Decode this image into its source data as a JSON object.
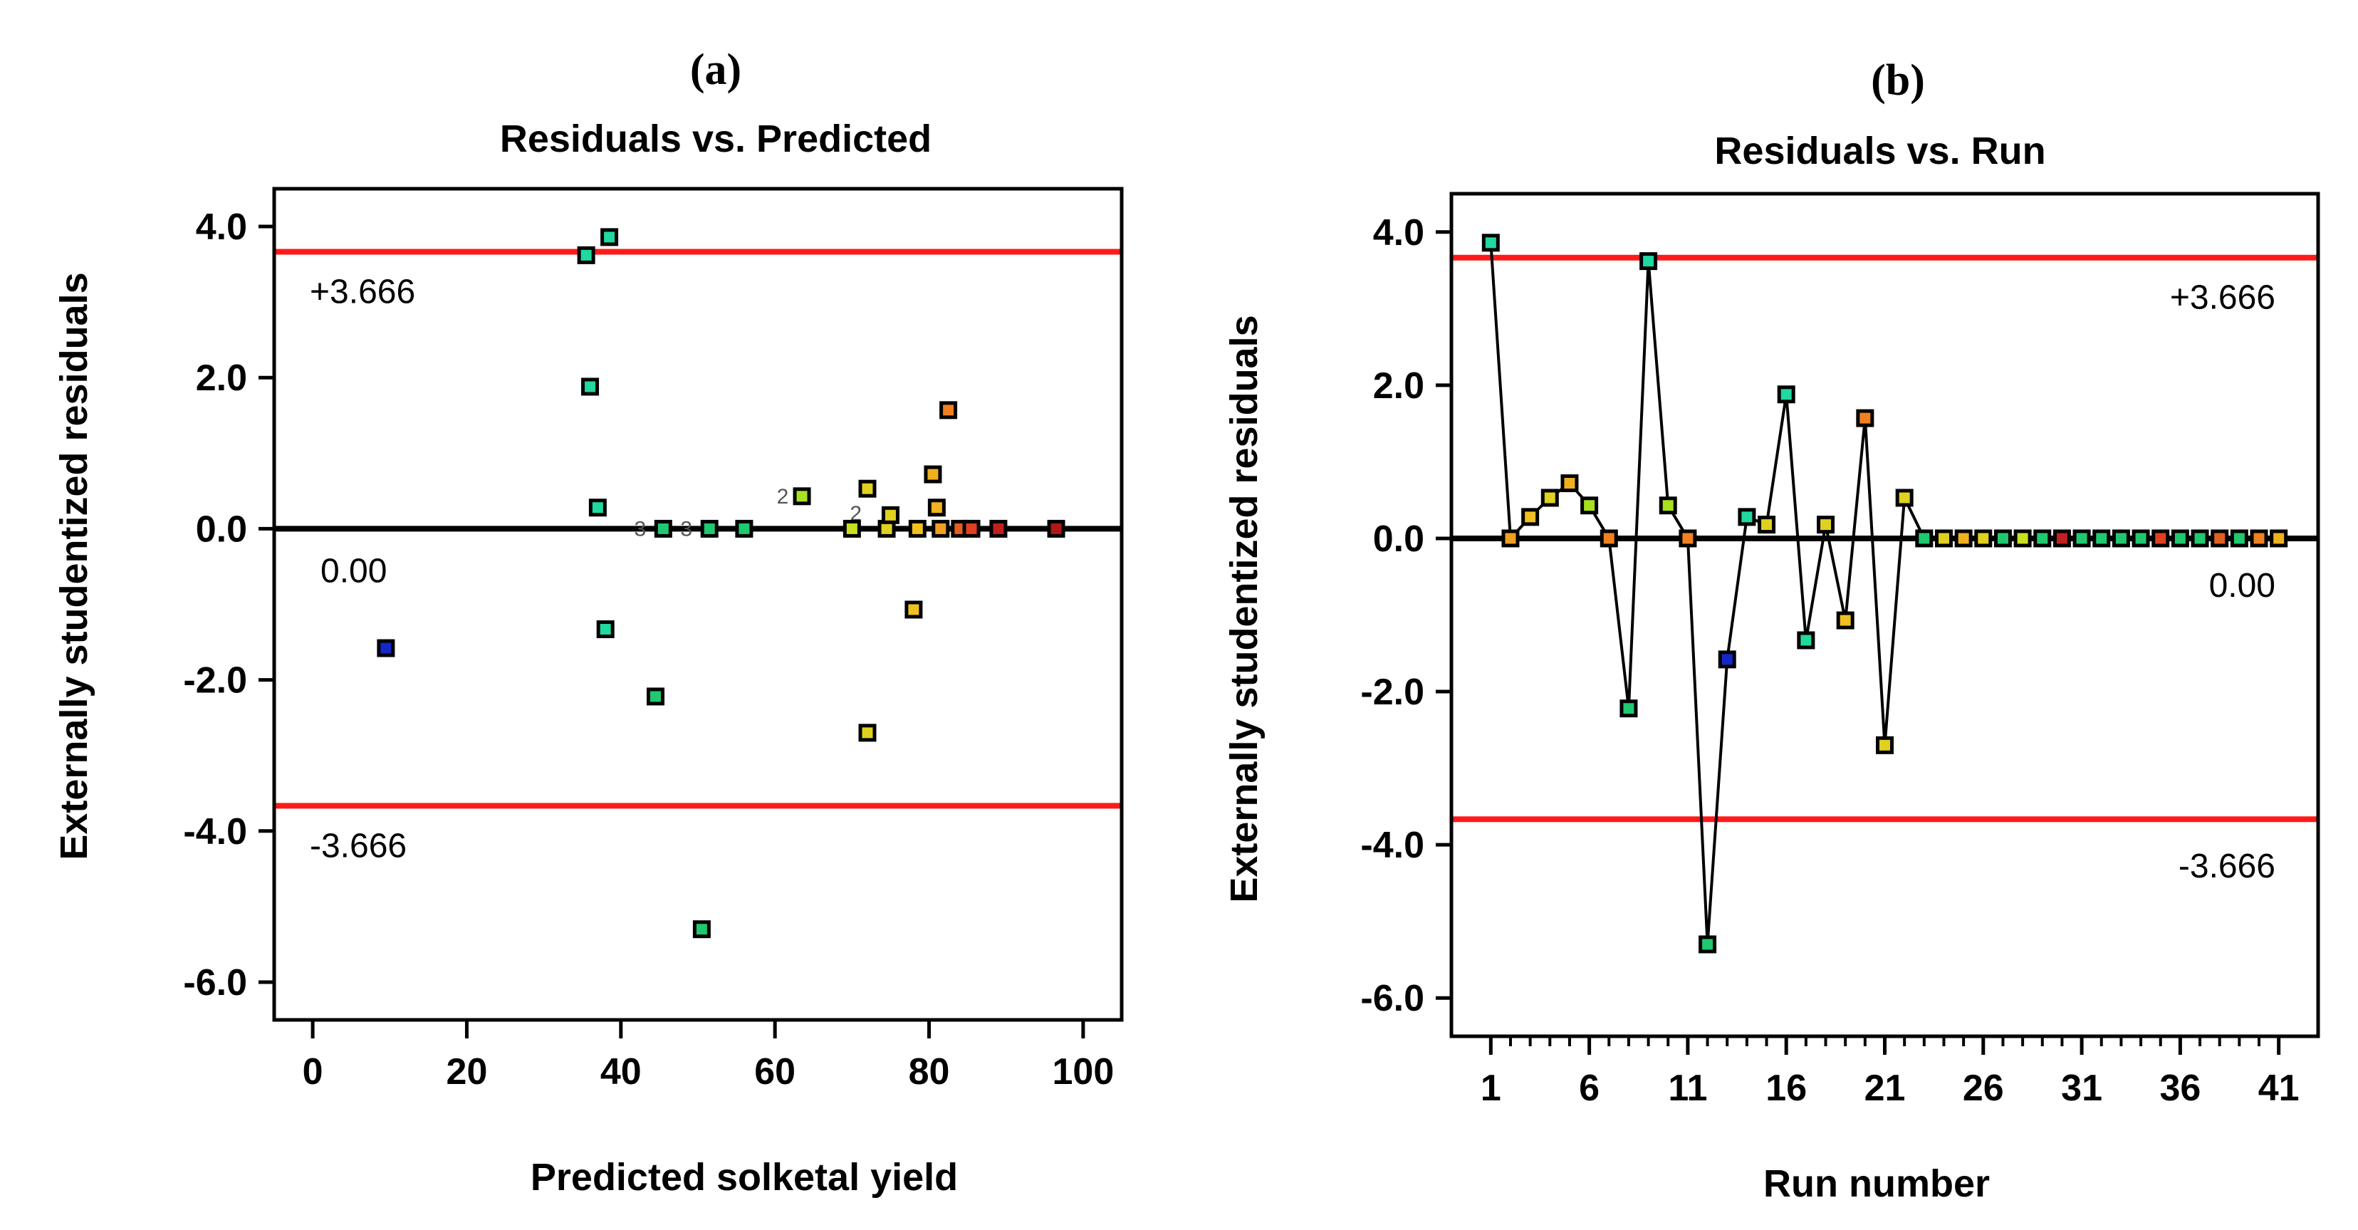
{
  "colors": {
    "limit": "#ff1a1a",
    "zero": "#000000",
    "frame": "#000000"
  },
  "chart_data": [
    {
      "panel_label": "(a)",
      "type": "scatter",
      "title": "Residuals vs. Predicted",
      "xlabel": "Predicted solketal yield",
      "ylabel": "Externally studentized residuals",
      "xlim": [
        -5,
        105
      ],
      "ylim": [
        -6.5,
        4.5
      ],
      "xticks": [
        0,
        20,
        40,
        60,
        80,
        100
      ],
      "yticks": [
        4.0,
        2.0,
        0.0,
        -2.0,
        -4.0,
        -6.0
      ],
      "ytick_labels": [
        "4.0",
        "2.0",
        "0.0",
        "-2.0",
        "-4.0",
        "-6.0"
      ],
      "limits": {
        "upper": 3.666,
        "lower": -3.666,
        "center": 0.0
      },
      "limit_labels": {
        "upper": "+3.666",
        "lower": "-3.666",
        "center": "0.00"
      },
      "points": [
        {
          "x": 9.5,
          "y": -1.58,
          "color": "#1428c8"
        },
        {
          "x": 35.5,
          "y": 3.62,
          "color": "#20d8a0"
        },
        {
          "x": 38.5,
          "y": 3.86,
          "color": "#20d8a0"
        },
        {
          "x": 36.0,
          "y": 1.88,
          "color": "#20d8a0"
        },
        {
          "x": 37.0,
          "y": 0.28,
          "color": "#20d8a0"
        },
        {
          "x": 38.0,
          "y": -1.33,
          "color": "#20d8a0"
        },
        {
          "x": 44.5,
          "y": -2.22,
          "color": "#20c870"
        },
        {
          "x": 45.5,
          "y": 0.0,
          "color": "#20c870"
        },
        {
          "x": 50.5,
          "y": -5.3,
          "color": "#20c870"
        },
        {
          "x": 51.5,
          "y": 0.0,
          "color": "#20c870"
        },
        {
          "x": 56.0,
          "y": 0.0,
          "color": "#20c870"
        },
        {
          "x": 63.5,
          "y": 0.43,
          "color": "#a8e020"
        },
        {
          "x": 70.0,
          "y": 0.0,
          "color": "#c8e020"
        },
        {
          "x": 72.0,
          "y": 0.53,
          "color": "#e0d020"
        },
        {
          "x": 72.0,
          "y": -2.7,
          "color": "#e0d020"
        },
        {
          "x": 74.5,
          "y": 0.0,
          "color": "#e0d020"
        },
        {
          "x": 75.0,
          "y": 0.18,
          "color": "#e0d020"
        },
        {
          "x": 78.0,
          "y": -1.07,
          "color": "#f0c020"
        },
        {
          "x": 78.5,
          "y": 0.0,
          "color": "#f0c020"
        },
        {
          "x": 80.5,
          "y": 0.72,
          "color": "#f0b020"
        },
        {
          "x": 81.0,
          "y": 0.28,
          "color": "#f0b020"
        },
        {
          "x": 81.5,
          "y": 0.0,
          "color": "#f0a020"
        },
        {
          "x": 82.5,
          "y": 1.57,
          "color": "#f08020"
        },
        {
          "x": 84.0,
          "y": 0.0,
          "color": "#e06020"
        },
        {
          "x": 85.5,
          "y": 0.0,
          "color": "#e04020"
        },
        {
          "x": 89.0,
          "y": 0.0,
          "color": "#c02020"
        },
        {
          "x": 96.5,
          "y": 0.0,
          "color": "#b01818"
        }
      ],
      "annotations": [
        {
          "text": "2",
          "x": 61.0,
          "y": 0.43
        },
        {
          "text": "2",
          "x": 70.5,
          "y": 0.2
        },
        {
          "text": "3",
          "x": 42.5,
          "y": 0.0
        },
        {
          "text": "3",
          "x": 48.5,
          "y": 0.0
        }
      ]
    },
    {
      "panel_label": "(b)",
      "type": "line",
      "title": "Residuals vs. Run",
      "xlabel": "Run number",
      "ylabel": "Externally studentized residuals",
      "xlim": [
        -1,
        43
      ],
      "ylim": [
        -6.5,
        4.5
      ],
      "xticks": [
        1,
        6,
        11,
        16,
        21,
        26,
        31,
        36,
        41
      ],
      "yticks": [
        4.0,
        2.0,
        0.0,
        -2.0,
        -4.0,
        -6.0
      ],
      "ytick_labels": [
        "4.0",
        "2.0",
        "0.0",
        "-2.0",
        "-4.0",
        "-6.0"
      ],
      "limits": {
        "upper": 3.666,
        "lower": -3.666,
        "center": 0.0
      },
      "limit_labels": {
        "upper": "+3.666",
        "lower": "-3.666",
        "center": "0.00"
      },
      "x": [
        1,
        2,
        3,
        4,
        5,
        6,
        7,
        8,
        9,
        10,
        11,
        12,
        13,
        14,
        15,
        16,
        17,
        18,
        19,
        20,
        21,
        22,
        23,
        24,
        25,
        26,
        27,
        28,
        29,
        30,
        31,
        32,
        33,
        34,
        35,
        36,
        37,
        38,
        39,
        40,
        41
      ],
      "values": [
        3.86,
        0.0,
        0.28,
        0.53,
        0.72,
        0.43,
        0.0,
        -2.22,
        3.62,
        0.43,
        0.0,
        -5.3,
        -1.58,
        0.28,
        0.18,
        1.88,
        -1.33,
        0.18,
        -1.07,
        1.57,
        -2.7,
        0.53,
        0,
        0,
        0,
        0,
        0,
        0,
        0,
        0,
        0,
        0,
        0,
        0,
        0,
        0,
        0,
        0,
        0,
        0,
        0
      ],
      "colors": [
        "#20d8a0",
        "#f0a020",
        "#f0c020",
        "#e0d020",
        "#f0b020",
        "#a8e020",
        "#f08020",
        "#20c870",
        "#20d8a0",
        "#a8e020",
        "#f08020",
        "#20c870",
        "#1428c8",
        "#20d8a0",
        "#e0d020",
        "#20d8a0",
        "#20d8a0",
        "#e0d020",
        "#f0c020",
        "#f08020",
        "#e0d020",
        "#e0d020",
        "#20c870",
        "#e0d020",
        "#f0b020",
        "#e0d020",
        "#20c870",
        "#c8e020",
        "#20c870",
        "#c02020",
        "#20c870",
        "#20c870",
        "#20c870",
        "#20c870",
        "#e04020",
        "#20c870",
        "#20c870",
        "#e06020",
        "#20c870",
        "#f08020",
        "#f0b020"
      ]
    }
  ]
}
